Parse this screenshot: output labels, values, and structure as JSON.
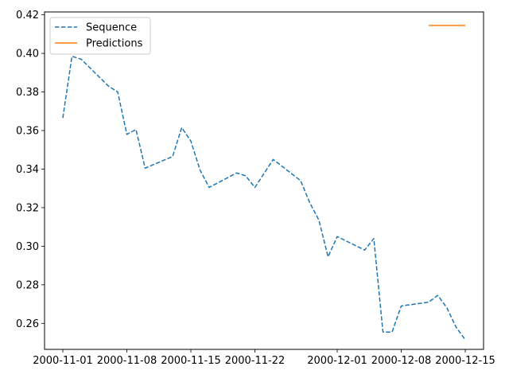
{
  "chart_data": {
    "type": "line",
    "title": "",
    "xlabel": "",
    "ylabel": "",
    "xlim": [
      "2000-10-30",
      "2000-12-17"
    ],
    "ylim": [
      0.2465,
      0.4215
    ],
    "x_ticks": [
      "2000-11-01",
      "2000-11-08",
      "2000-11-15",
      "2000-11-22",
      "2000-12-01",
      "2000-12-08",
      "2000-12-15"
    ],
    "y_ticks": [
      0.26,
      0.28,
      0.3,
      0.32,
      0.34,
      0.36,
      0.38,
      0.4,
      0.42
    ],
    "grid": false,
    "legend": {
      "placement": "top-left"
    },
    "series": [
      {
        "name": "Sequence",
        "color": "#1f77b4",
        "style": "dashed",
        "points": [
          [
            "2000-11-01",
            0.3665
          ],
          [
            "2000-11-02",
            0.3985
          ],
          [
            "2000-11-03",
            0.397
          ],
          [
            "2000-11-06",
            0.383
          ],
          [
            "2000-11-07",
            0.38
          ],
          [
            "2000-11-08",
            0.358
          ],
          [
            "2000-11-09",
            0.3605
          ],
          [
            "2000-11-10",
            0.3405
          ],
          [
            "2000-11-13",
            0.3465
          ],
          [
            "2000-11-14",
            0.3615
          ],
          [
            "2000-11-15",
            0.3545
          ],
          [
            "2000-11-16",
            0.3395
          ],
          [
            "2000-11-17",
            0.3305
          ],
          [
            "2000-11-20",
            0.338
          ],
          [
            "2000-11-21",
            0.3365
          ],
          [
            "2000-11-22",
            0.3305
          ],
          [
            "2000-11-24",
            0.345
          ],
          [
            "2000-11-27",
            0.334
          ],
          [
            "2000-11-28",
            0.3225
          ],
          [
            "2000-11-29",
            0.3135
          ],
          [
            "2000-11-30",
            0.2945
          ],
          [
            "2000-12-01",
            0.305
          ],
          [
            "2000-12-04",
            0.298
          ],
          [
            "2000-12-05",
            0.304
          ],
          [
            "2000-12-06",
            0.2555
          ],
          [
            "2000-12-07",
            0.2555
          ],
          [
            "2000-12-08",
            0.269
          ],
          [
            "2000-12-11",
            0.271
          ],
          [
            "2000-12-12",
            0.2745
          ],
          [
            "2000-12-13",
            0.268
          ],
          [
            "2000-12-14",
            0.258
          ],
          [
            "2000-12-15",
            0.2515
          ]
        ]
      },
      {
        "name": "Predictions",
        "color": "#ff7f0e",
        "style": "solid",
        "points": [
          [
            "2000-12-11",
            0.4145
          ],
          [
            "2000-12-15",
            0.4145
          ]
        ]
      }
    ]
  }
}
